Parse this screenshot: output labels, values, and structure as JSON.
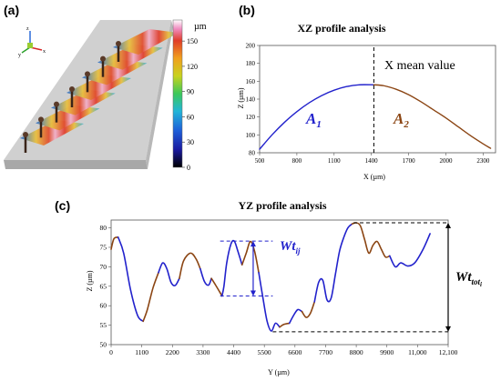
{
  "panels": {
    "a": "(a)",
    "b": "(b)",
    "c": "(c)"
  },
  "panel_a": {
    "colorbar": {
      "unit": "µm",
      "ticks": [
        0,
        30,
        60,
        90,
        120,
        150
      ],
      "range": [
        0,
        175
      ]
    },
    "axis_letters": {
      "z": "z",
      "y": "y",
      "x": "x"
    }
  },
  "chart_data": [
    {
      "id": "xz",
      "type": "line",
      "title": "XZ profile analysis",
      "xlabel": "X (µm)",
      "ylabel": "Z (µm)",
      "xlim": [
        500,
        2400
      ],
      "ylim": [
        80,
        200
      ],
      "xticks": [
        500,
        800,
        1100,
        1400,
        1700,
        2000,
        2300
      ],
      "yticks": [
        80,
        100,
        120,
        140,
        160,
        180,
        200
      ],
      "mean_x": 1420,
      "mean_label": "X mean value",
      "region_labels": {
        "left": "A",
        "left_sub": "1",
        "right": "A",
        "right_sub": "2"
      },
      "series": [
        {
          "color": "#2222cc",
          "x": [
            500,
            600,
            700,
            800,
            900,
            1000,
            1100,
            1200,
            1300,
            1420
          ],
          "y": [
            84,
            100,
            114,
            126,
            136,
            144,
            150,
            154,
            156,
            156
          ]
        },
        {
          "color": "#8b4513",
          "x": [
            1420,
            1500,
            1600,
            1700,
            1800,
            1900,
            2000,
            2100,
            2200,
            2300,
            2360
          ],
          "y": [
            156,
            155,
            151,
            145,
            137,
            128,
            119,
            109,
            99,
            90,
            85
          ]
        }
      ]
    },
    {
      "id": "yz",
      "type": "line",
      "title": "YZ profile analysis",
      "xlabel": "Y (µm)",
      "ylabel": "Z (µm)",
      "xlim": [
        0,
        12100
      ],
      "ylim": [
        50,
        82
      ],
      "xticks": [
        0,
        1100,
        2200,
        3300,
        4400,
        5500,
        6600,
        7700,
        8800,
        9900,
        11000,
        12100
      ],
      "xtick_labels": [
        "0",
        "1100",
        "2200",
        "3300",
        "4400",
        "5500",
        "6600",
        "7700",
        "8800",
        "9900",
        "11,000",
        "12,100"
      ],
      "yticks": [
        50,
        55,
        60,
        65,
        70,
        75,
        80
      ],
      "series": [
        {
          "color": "#8b4513",
          "x": [
            0,
            100,
            250
          ],
          "y": [
            74.5,
            77.2,
            77.6
          ]
        },
        {
          "color": "#2222cc",
          "x": [
            250,
            450,
            700,
            950,
            1150
          ],
          "y": [
            77.6,
            73.5,
            64,
            57.5,
            56
          ]
        },
        {
          "color": "#8b4513",
          "x": [
            1150,
            1300,
            1500,
            1700
          ],
          "y": [
            56,
            59,
            64.5,
            68.5
          ]
        },
        {
          "color": "#2222cc",
          "x": [
            1700,
            1850,
            2000,
            2150,
            2300,
            2450
          ],
          "y": [
            68.5,
            71,
            69.5,
            66,
            65.2,
            67
          ]
        },
        {
          "color": "#8b4513",
          "x": [
            2450,
            2600,
            2850,
            3050,
            3200
          ],
          "y": [
            67,
            71.5,
            73.5,
            72,
            69.5
          ]
        },
        {
          "color": "#2222cc",
          "x": [
            3200,
            3350,
            3500,
            3600
          ],
          "y": [
            69.5,
            66.2,
            65.3,
            67
          ]
        },
        {
          "color": "#8b4513",
          "x": [
            3600,
            3750,
            3900,
            3980
          ],
          "y": [
            67,
            65.3,
            63.5,
            62.5
          ]
        },
        {
          "color": "#2222cc",
          "x": [
            3980,
            4050,
            4150,
            4300,
            4420,
            4550,
            4700
          ],
          "y": [
            62.5,
            65,
            71,
            75.8,
            76.6,
            74,
            70.5
          ]
        },
        {
          "color": "#8b4513",
          "x": [
            4700,
            4850,
            5000,
            5150,
            5300
          ],
          "y": [
            70.5,
            73.5,
            76.5,
            74,
            68.5
          ]
        },
        {
          "color": "#2222cc",
          "x": [
            5300,
            5450,
            5600,
            5750,
            5900,
            6050
          ],
          "y": [
            68.5,
            62,
            56,
            53.5,
            55.5,
            54.5
          ]
        },
        {
          "color": "#8b4513",
          "x": [
            6050,
            6200,
            6400
          ],
          "y": [
            54.5,
            55.2,
            55.5
          ]
        },
        {
          "color": "#2222cc",
          "x": [
            6400,
            6550,
            6700,
            6850
          ],
          "y": [
            55.5,
            57.5,
            59,
            58.5
          ]
        },
        {
          "color": "#8b4513",
          "x": [
            6850,
            7000,
            7150,
            7300
          ],
          "y": [
            58.5,
            57,
            58,
            61
          ]
        },
        {
          "color": "#2222cc",
          "x": [
            7300,
            7450,
            7600,
            7750,
            7900,
            8050,
            8200,
            8350,
            8500,
            8650
          ],
          "y": [
            61,
            66,
            66.5,
            61.5,
            62,
            68,
            74,
            77.5,
            80,
            81
          ]
        },
        {
          "color": "#8b4513",
          "x": [
            8650,
            8800,
            8950,
            9100,
            9250,
            9400,
            9550,
            9700,
            9850,
            10000
          ],
          "y": [
            81,
            81.3,
            80.5,
            77,
            73.5,
            75.5,
            76.5,
            74.5,
            72.5,
            72.8
          ]
        },
        {
          "color": "#2222cc",
          "x": [
            10000,
            10200,
            10400,
            10650,
            10900,
            11200,
            11450
          ],
          "y": [
            72.8,
            70,
            71,
            70.2,
            71,
            74.5,
            78.5
          ]
        }
      ],
      "annotations": {
        "wt_ij": {
          "label": "Wt",
          "sub": "ij",
          "y_top": 76.6,
          "y_bottom": 62.5,
          "x_from": 3980,
          "x_to": 5800
        },
        "wt_tot": {
          "label": "Wt",
          "sub": "tot",
          "subsub": "i",
          "y_top": 81.3,
          "y_bottom": 53.3,
          "x_left_top": 8700,
          "x_left_bottom": 5800,
          "x_right": 12100
        }
      }
    }
  ]
}
